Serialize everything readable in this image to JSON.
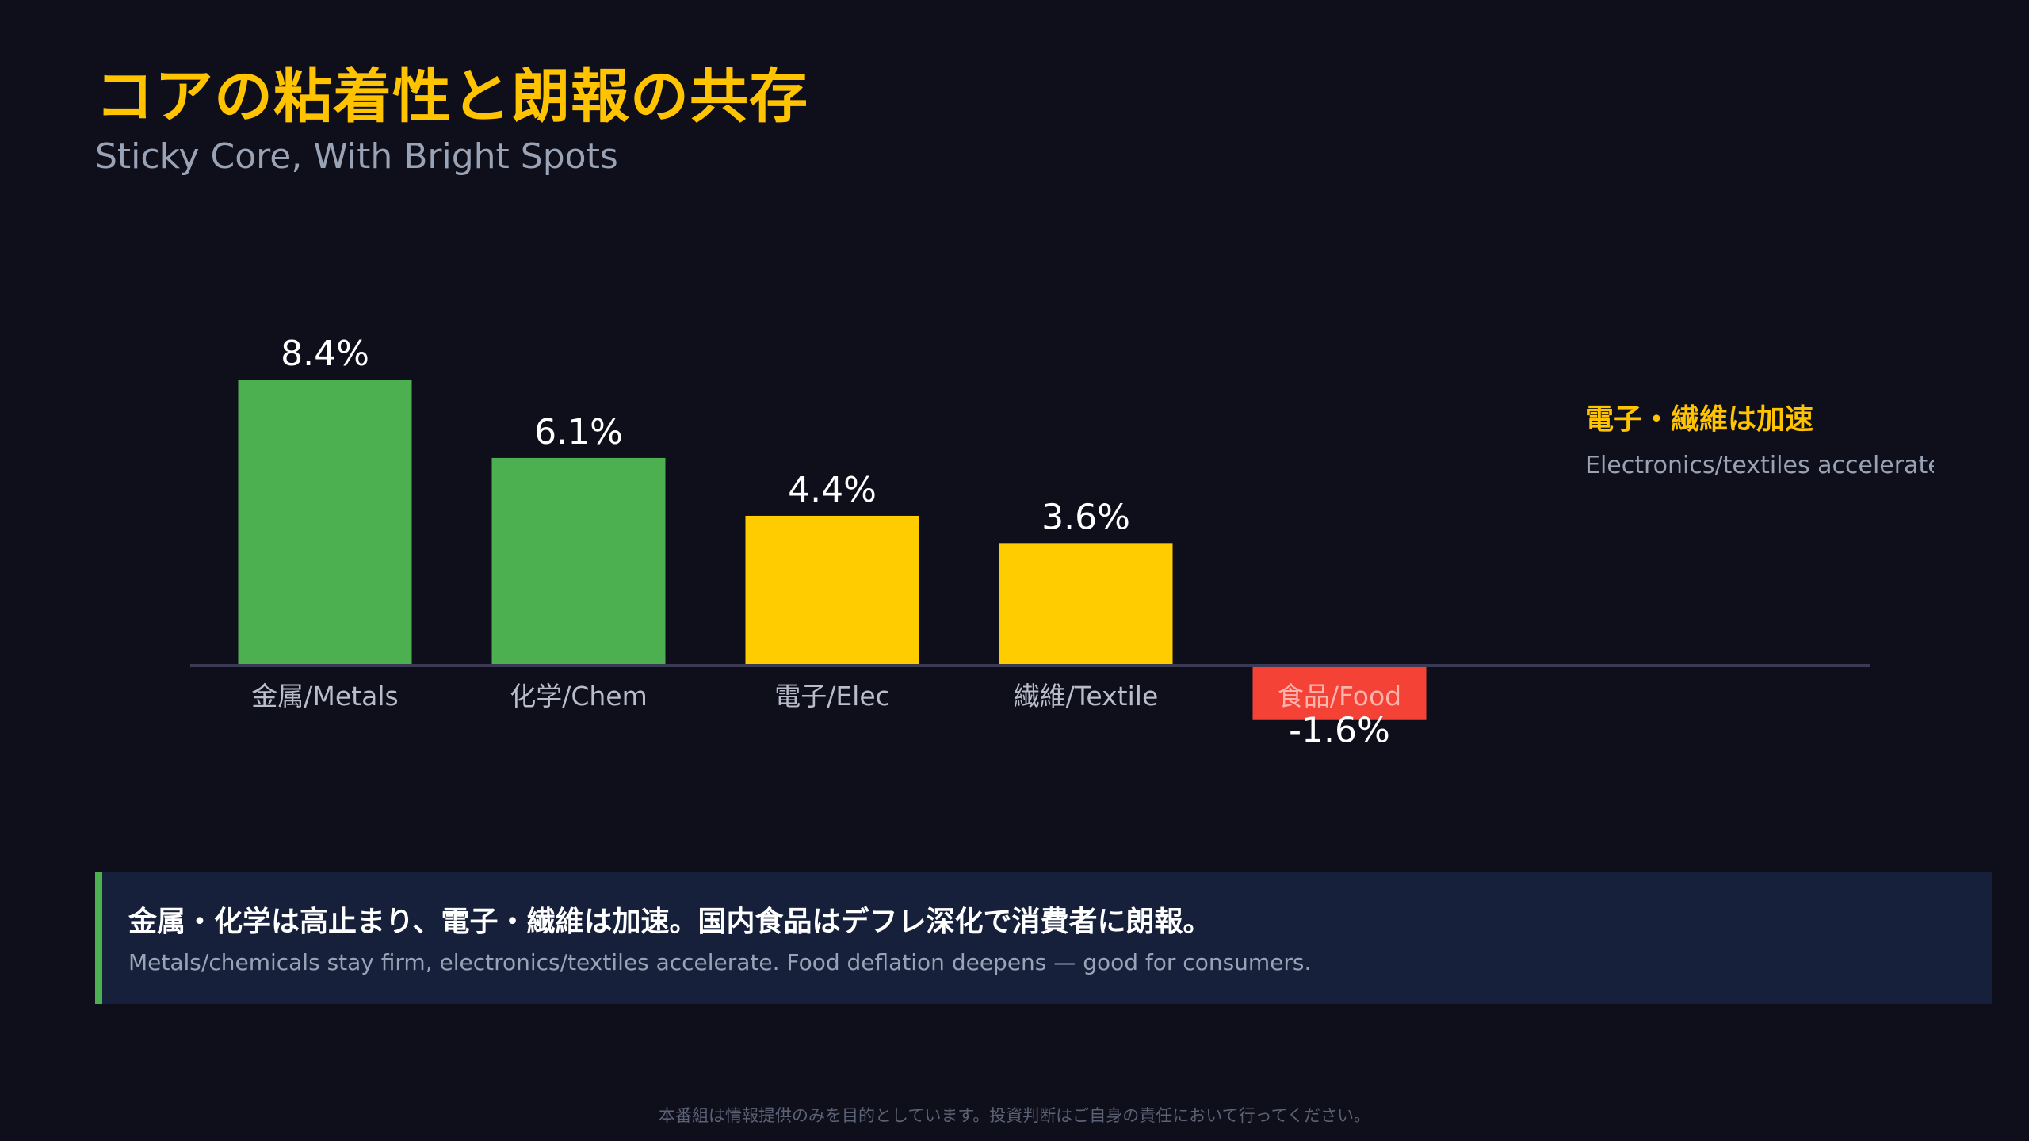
{
  "header": {
    "title": "コアの粘着性と朗報の共存",
    "subtitle": "Sticky Core, With Bright Spots"
  },
  "colors": {
    "background": "#0f0f1c",
    "accent": "#ffc300",
    "positive_strong": "#4caf50",
    "positive_moderate": "#ffcc00",
    "negative": "#f44336",
    "axis": "#3a3a55",
    "category_label": "#b8bccb"
  },
  "chart_data": {
    "type": "bar",
    "categories": [
      "金属/Metals",
      "化学/Chem",
      "電子/Elec",
      "繊維/Textile",
      "食品/Food"
    ],
    "values": [
      8.4,
      6.1,
      4.4,
      3.6,
      -1.6
    ],
    "data_labels": [
      "8.4%",
      "6.1%",
      "4.4%",
      "3.6%",
      "-1.6%"
    ],
    "bar_colors": [
      "#4caf50",
      "#4caf50",
      "#ffcc00",
      "#ffcc00",
      "#f44336"
    ],
    "title": "",
    "xlabel": "",
    "ylabel": "",
    "grid": false,
    "legend": "none"
  },
  "annotation": {
    "jp": "電子・繊維は加速",
    "en": "Electronics/textiles accelerated"
  },
  "summary": {
    "jp": "金属・化学は高止まり、電子・繊維は加速。国内食品はデフレ深化で消費者に朗報。",
    "en": "Metals/chemicals stay firm, electronics/textiles accelerate. Food deflation deepens — good for consumers."
  },
  "footer": {
    "disclaimer": "本番組は情報提供のみを目的としています。投資判断はご自身の責任において行ってください。"
  }
}
